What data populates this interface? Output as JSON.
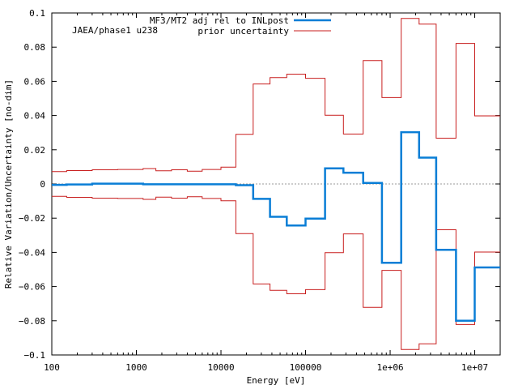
{
  "chart_data": {
    "type": "line",
    "title": "JAEA/phase1 u238",
    "xlabel": "Energy [eV]",
    "ylabel": "Relative Variation/Uncertainty [no-dim]",
    "xscale": "log",
    "xlim": [
      100,
      20000000
    ],
    "ylim": [
      -0.1,
      0.1
    ],
    "y_ticks": [
      -0.1,
      -0.08,
      -0.06,
      -0.04,
      -0.02,
      0,
      0.02,
      0.04,
      0.06,
      0.08,
      0.1
    ],
    "y_tick_labels": [
      "−0.1",
      "−0.08",
      "−0.06",
      "−0.04",
      "−0.02",
      "0",
      "0.02",
      "0.04",
      "0.06",
      "0.08",
      "0.1"
    ],
    "x_ticks": [
      100,
      1000,
      10000,
      100000,
      1000000,
      10000000
    ],
    "x_tick_labels": [
      "100",
      "1000",
      "10000",
      "100000",
      "1e+06",
      "1e+07"
    ],
    "zero_line": true,
    "legend_position": "top-right",
    "bin_edges": [
      100,
      150,
      300,
      600,
      1200,
      1700,
      2600,
      4000,
      6000,
      10000,
      15000,
      24000,
      38000,
      60000,
      100000,
      170000,
      280000,
      480000,
      800000,
      1350000,
      2200000,
      3500000,
      6000000,
      10000000,
      20000000
    ],
    "series": [
      {
        "name": "MF3/MT2 adj rel to INLpost",
        "color": "#0a7ed6",
        "style": "step-thick",
        "values": [
          -0.0005,
          -0.0003,
          0.0002,
          0.0002,
          -0.0002,
          -0.0002,
          -0.0002,
          -0.0002,
          -0.0002,
          -0.0002,
          -0.0007,
          -0.0087,
          -0.0192,
          -0.0243,
          -0.0203,
          0.0091,
          0.0066,
          0.0006,
          -0.0461,
          0.0303,
          0.0154,
          -0.0385,
          -0.08,
          -0.0488
        ]
      },
      {
        "name": "prior uncertainty",
        "color": "#c81e1e",
        "style": "step-mirrored",
        "values": [
          0.0072,
          0.0078,
          0.0083,
          0.0085,
          0.009,
          0.0077,
          0.0083,
          0.0075,
          0.0085,
          0.0098,
          0.029,
          0.0585,
          0.0622,
          0.0642,
          0.0618,
          0.0402,
          0.0292,
          0.0722,
          0.0505,
          0.0968,
          0.0935,
          0.0268,
          0.0822,
          0.0398
        ]
      }
    ]
  }
}
